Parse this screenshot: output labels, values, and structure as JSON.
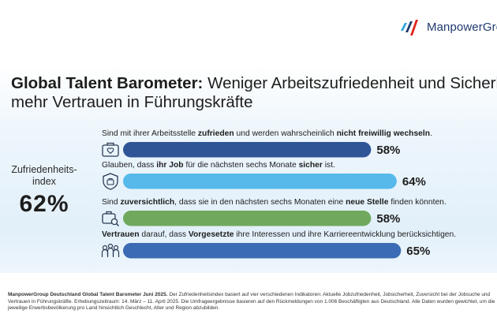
{
  "logo": {
    "text": "ManpowerGro"
  },
  "headline": {
    "bold": "Global Talent Barometer:",
    "line1_rest": " Weniger Arbeitszufriedenheit und Sicherhe",
    "line2": "mehr Vertrauen in Führungskräfte"
  },
  "index": {
    "label_line1": "Zufriedenheits-",
    "label_line2": "index",
    "value": "62%"
  },
  "chart_data": {
    "type": "bar",
    "orientation": "horizontal",
    "ylim": [
      0,
      100
    ],
    "categories": [
      "Sind mit ihrer Arbeitsstelle zufrieden und werden wahrscheinlich nicht freiwillig wechseln.",
      "Glauben, dass ihr Job für die nächsten sechs Monate sicher ist.",
      "Sind zuversichtlich, dass sie in den nächsten sechs Monaten eine neue Stelle finden könnten.",
      "Vertrauen darauf, dass Vorgesetzte ihre Interessen und ihre Karriereentwicklung berücksichtigen."
    ],
    "values": [
      58,
      64,
      58,
      65
    ],
    "value_labels": [
      "58%",
      "64%",
      "58%",
      "65%"
    ],
    "bars": [
      {
        "segments": [
          {
            "t": "Sind mit ihrer Arbeitsstelle ",
            "b": false
          },
          {
            "t": "zufrieden",
            "b": true
          },
          {
            "t": " und werden wahrscheinlich ",
            "b": false
          },
          {
            "t": "nicht freiwillig wechseln",
            "b": true
          },
          {
            "t": ".",
            "b": false
          }
        ],
        "color": "#2f5597",
        "icon": "briefcase-heart-icon"
      },
      {
        "segments": [
          {
            "t": "Glauben, dass ",
            "b": false
          },
          {
            "t": "ihr Job",
            "b": true
          },
          {
            "t": " für die nächsten sechs Monate ",
            "b": false
          },
          {
            "t": "sicher",
            "b": true
          },
          {
            "t": " ist.",
            "b": false
          }
        ],
        "color": "#56b9ea",
        "icon": "shield-briefcase-icon"
      },
      {
        "segments": [
          {
            "t": "Sind ",
            "b": false
          },
          {
            "t": "zuversichtlich",
            "b": true
          },
          {
            "t": ", dass sie in den nächsten sechs Monaten eine ",
            "b": false
          },
          {
            "t": "neue Stelle",
            "b": true
          },
          {
            "t": " finden könnten.",
            "b": false
          }
        ],
        "color": "#70a95e",
        "icon": "briefcase-search-icon"
      },
      {
        "segments": [
          {
            "t": "Vertrauen",
            "b": true
          },
          {
            "t": " darauf, dass ",
            "b": false
          },
          {
            "t": "Vorgesetzte",
            "b": true
          },
          {
            "t": " ihre Interessen und ihre Karriereentwicklung berücksichtigen.",
            "b": false
          }
        ],
        "color": "#3c6bb5",
        "icon": "team-icon"
      }
    ]
  },
  "footnote": {
    "bold": "ManpowerGroup Deutschland Global Talent Barometer Juni 2025.",
    "line1_rest": " Der Zufriedenheitsindex basiert auf vier verschiedenen Indikatoren: Aktuelle Jobzufriedenheit, Jobsicherheit, Zuversicht bei der Jobsuche und",
    "line2": "Vertrauen in Führungskräfte. Erhebungszeitraum: 14. März – 11. April 2025. Die Umfrageergebnisse basieren auf den Rückmeldungen von 1.006 Beschäftigten aus Deutschland. Alle Daten wurden gewichtet, um die",
    "line3": "jeweilige Erwerbsbevölkerung pro Land hinsichtlich Geschlecht, Alter und Region abzubilden."
  },
  "colors": {
    "brand_navy": "#1f3b70",
    "bar1": "#2f5597",
    "bar2": "#56b9ea",
    "bar3": "#70a95e",
    "bar4": "#3c6bb5"
  }
}
